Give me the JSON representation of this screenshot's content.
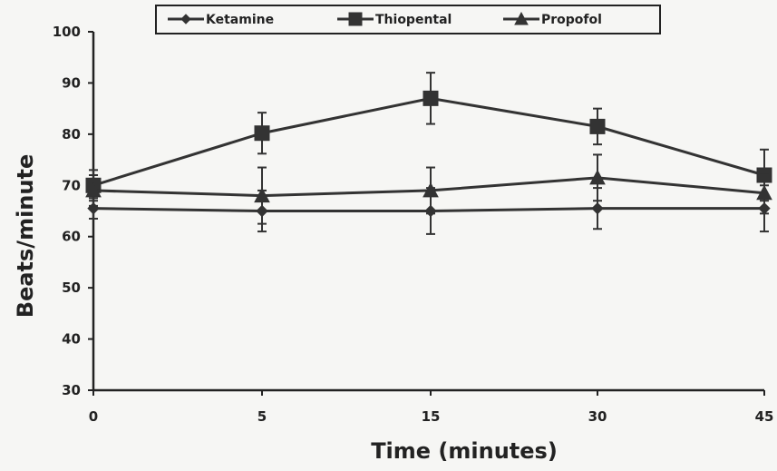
{
  "chart_data": {
    "type": "line",
    "title": "",
    "xlabel": "Time (minutes)",
    "ylabel": "Beats/minute",
    "categories": [
      "0",
      "5",
      "15",
      "30",
      "45"
    ],
    "ylim": [
      30,
      100
    ],
    "yticks": [
      "30",
      "40",
      "50",
      "60",
      "70",
      "80",
      "90",
      "100"
    ],
    "grid": false,
    "legend_position": "top",
    "series": [
      {
        "name": "Ketamine",
        "marker": "diamond",
        "values": [
          65.5,
          65,
          65,
          65.5,
          65.5
        ],
        "error": [
          2,
          4,
          4.5,
          4,
          4.5
        ]
      },
      {
        "name": "Thiopental",
        "marker": "square",
        "values": [
          70,
          80.2,
          87,
          81.5,
          72
        ],
        "error": [
          3,
          4,
          5,
          3.5,
          5
        ]
      },
      {
        "name": "Propofol",
        "marker": "triangle",
        "values": [
          69,
          68,
          69,
          71.5,
          68.5
        ],
        "error": [
          3,
          5.5,
          4.5,
          4.5,
          4
        ]
      }
    ],
    "colors": {
      "line": "#333333",
      "axis": "#222222",
      "background": "#f6f6f4"
    }
  }
}
